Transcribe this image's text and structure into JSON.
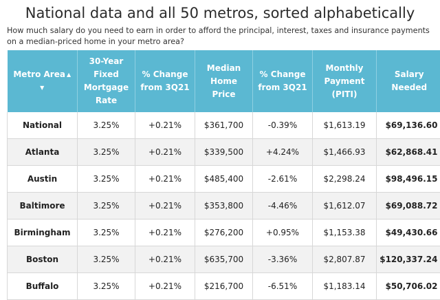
{
  "title": "National data and all 50 metros, sorted alphabetically",
  "subtitle": "How much salary do you need to earn in order to afford the principal, interest, taxes and insurance payments on a median-priced home in your metro area?",
  "headers": {
    "metro": "Metro Area",
    "rate": "30-Year Fixed Mortgage Rate",
    "rate_change": "% Change from 3Q21",
    "price": "Median Home Price",
    "price_change": "% Change from 3Q21",
    "payment": "Monthly Payment (PITI)",
    "salary": "Salary Needed",
    "sort_icon": "sort-arrows-icon"
  },
  "rows": [
    {
      "metro": "National",
      "rate": "3.25%",
      "rate_change": "+0.21%",
      "price": "$361,700",
      "price_change": "-0.39%",
      "payment": "$1,613.19",
      "salary": "$69,136.60"
    },
    {
      "metro": "Atlanta",
      "rate": "3.25%",
      "rate_change": "+0.21%",
      "price": "$339,500",
      "price_change": "+4.24%",
      "payment": "$1,466.93",
      "salary": "$62,868.41"
    },
    {
      "metro": "Austin",
      "rate": "3.25%",
      "rate_change": "+0.21%",
      "price": "$485,400",
      "price_change": "-2.61%",
      "payment": "$2,298.24",
      "salary": "$98,496.15"
    },
    {
      "metro": "Baltimore",
      "rate": "3.25%",
      "rate_change": "+0.21%",
      "price": "$353,800",
      "price_change": "-4.46%",
      "payment": "$1,612.07",
      "salary": "$69,088.72"
    },
    {
      "metro": "Birmingham",
      "rate": "3.25%",
      "rate_change": "+0.21%",
      "price": "$276,200",
      "price_change": "+0.95%",
      "payment": "$1,153.38",
      "salary": "$49,430.66"
    },
    {
      "metro": "Boston",
      "rate": "3.25%",
      "rate_change": "+0.21%",
      "price": "$635,700",
      "price_change": "-3.36%",
      "payment": "$2,807.87",
      "salary": "$120,337.24"
    },
    {
      "metro": "Buffalo",
      "rate": "3.25%",
      "rate_change": "+0.21%",
      "price": "$216,700",
      "price_change": "-6.51%",
      "payment": "$1,183.14",
      "salary": "$50,706.02"
    }
  ],
  "colors": {
    "header_bg": "#5bb8d2",
    "header_text": "#ffffff",
    "alt_row": "#f2f2f2"
  }
}
